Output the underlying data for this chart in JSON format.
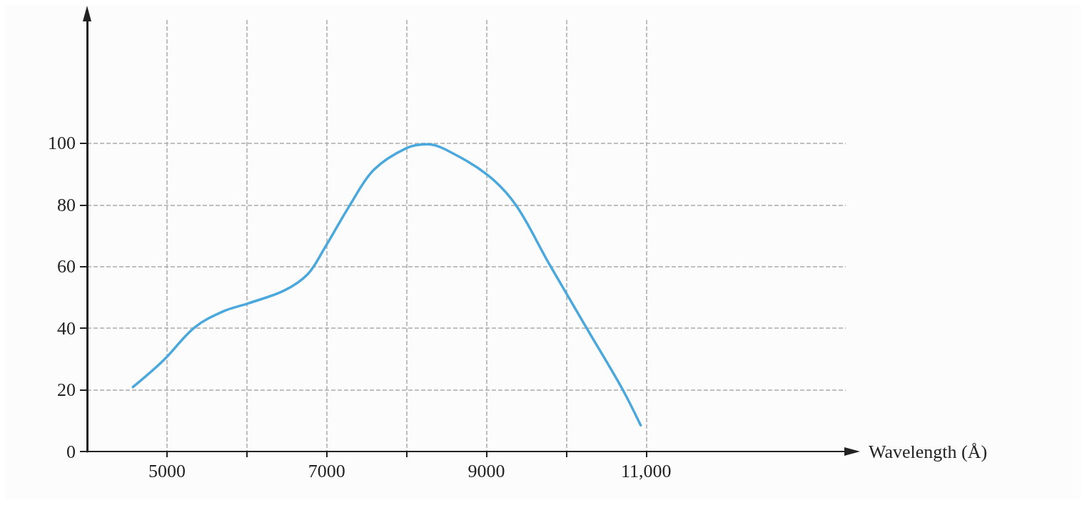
{
  "chart_data": {
    "type": "line",
    "xlabel": "Wavelength (Å)",
    "xlim": [
      4000,
      13500
    ],
    "ylim": [
      0,
      140
    ],
    "xticks": [
      5000,
      {
        "value": 6000,
        "label": null
      },
      7000,
      {
        "value": 8000,
        "label": null
      },
      9000,
      {
        "value": 10000,
        "label": null
      },
      {
        "value": 11000,
        "label": "11,000"
      }
    ],
    "yticks": [
      0,
      20,
      40,
      60,
      80,
      100
    ],
    "grid": true,
    "marker": "none",
    "line_style": "solid",
    "series": [
      {
        "color": "#4aa8dc",
        "x": [
          4574,
          4958,
          5343,
          5698,
          6023,
          6467,
          6762,
          6970,
          7295,
          7591,
          8005,
          8271,
          8478,
          9010,
          9365,
          9779,
          10252,
          10696,
          10932
        ],
        "values": [
          20.9,
          29.6,
          40.2,
          45.4,
          48.1,
          52.2,
          57.5,
          65.8,
          80.1,
          91.4,
          98.5,
          99.7,
          98.1,
          89.8,
          80.1,
          61.2,
          40.2,
          20.6,
          8.5
        ]
      }
    ]
  }
}
